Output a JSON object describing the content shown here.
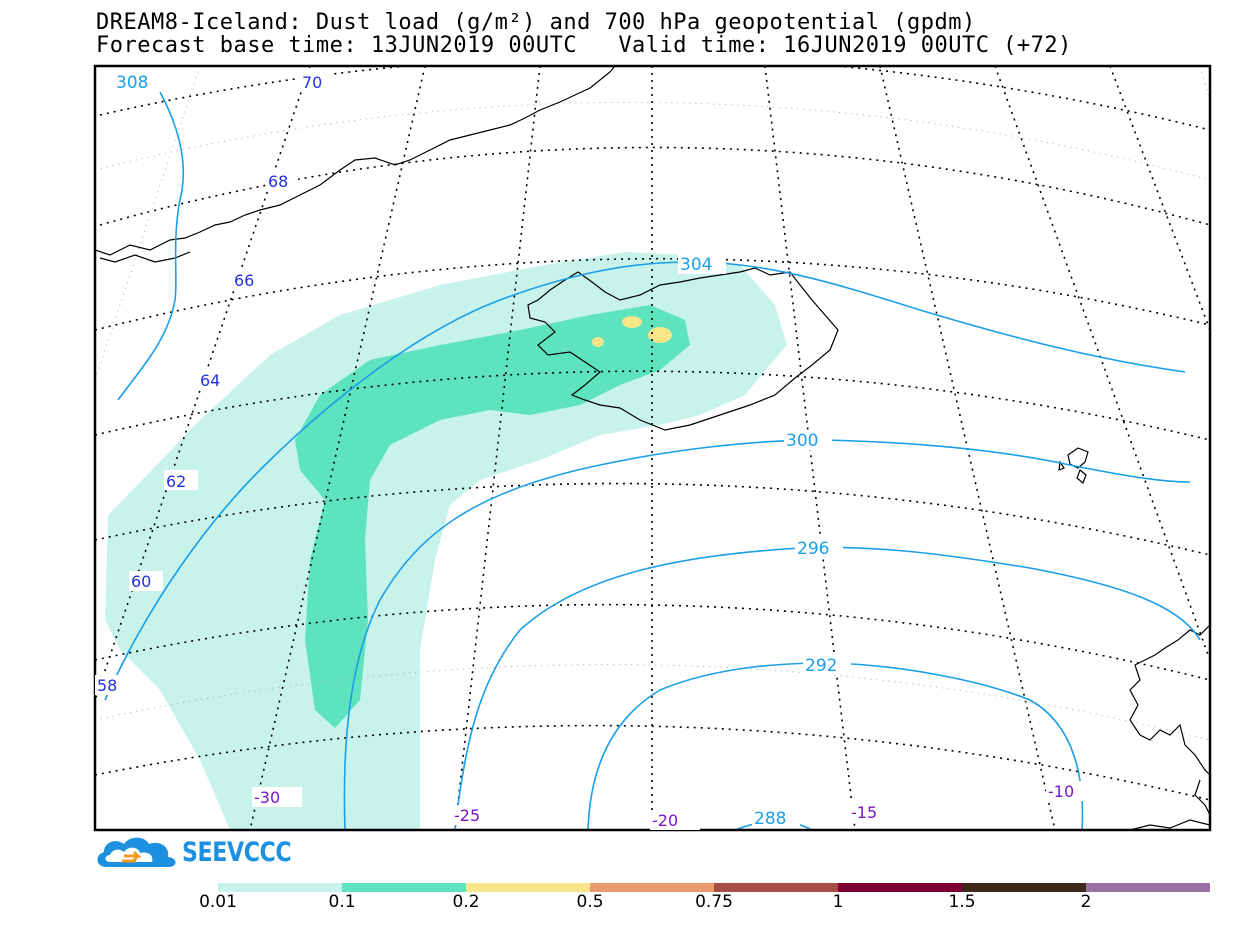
{
  "title": {
    "line1": "DREAM8-Iceland: Dust load (g/m²) and 700 hPa geopotential (gpdm)",
    "line2": "Forecast base time: 13JUN2019 00UTC   Valid time: 16JUN2019 00UTC (+72)"
  },
  "map": {
    "latitude_labels": [
      "70",
      "68",
      "66",
      "64",
      "62",
      "60",
      "58"
    ],
    "longitude_labels": [
      "-30",
      "-25",
      "-20",
      "-15",
      "-10"
    ],
    "geopotential_labels": [
      "308",
      "304",
      "300",
      "296",
      "292",
      "288"
    ],
    "colors": {
      "land_outline": "#000000",
      "graticule": "#000000",
      "geopotential_contour": "#1a9fe8",
      "latitude_label": "#2233dd",
      "longitude_label": "#7a14c8"
    }
  },
  "logo": {
    "text": "SEEVCCC",
    "color": "#1e90e0"
  },
  "colorbar": {
    "unit": "g/m²",
    "segments": [
      {
        "from": 0.01,
        "color": "#c8f3ea"
      },
      {
        "from": 0.1,
        "color": "#5ee3bf"
      },
      {
        "from": 0.2,
        "color": "#f7e58a"
      },
      {
        "from": 0.5,
        "color": "#e99a6f"
      },
      {
        "from": 0.75,
        "color": "#a94c44"
      },
      {
        "from": 1,
        "color": "#7f0035"
      },
      {
        "from": 1.5,
        "color": "#3b2a1a"
      },
      {
        "from": 2,
        "color": "#9a6fa6"
      }
    ],
    "labels": [
      "0.01",
      "0.1",
      "0.2",
      "0.5",
      "0.75",
      "1",
      "1.5",
      "2"
    ]
  }
}
